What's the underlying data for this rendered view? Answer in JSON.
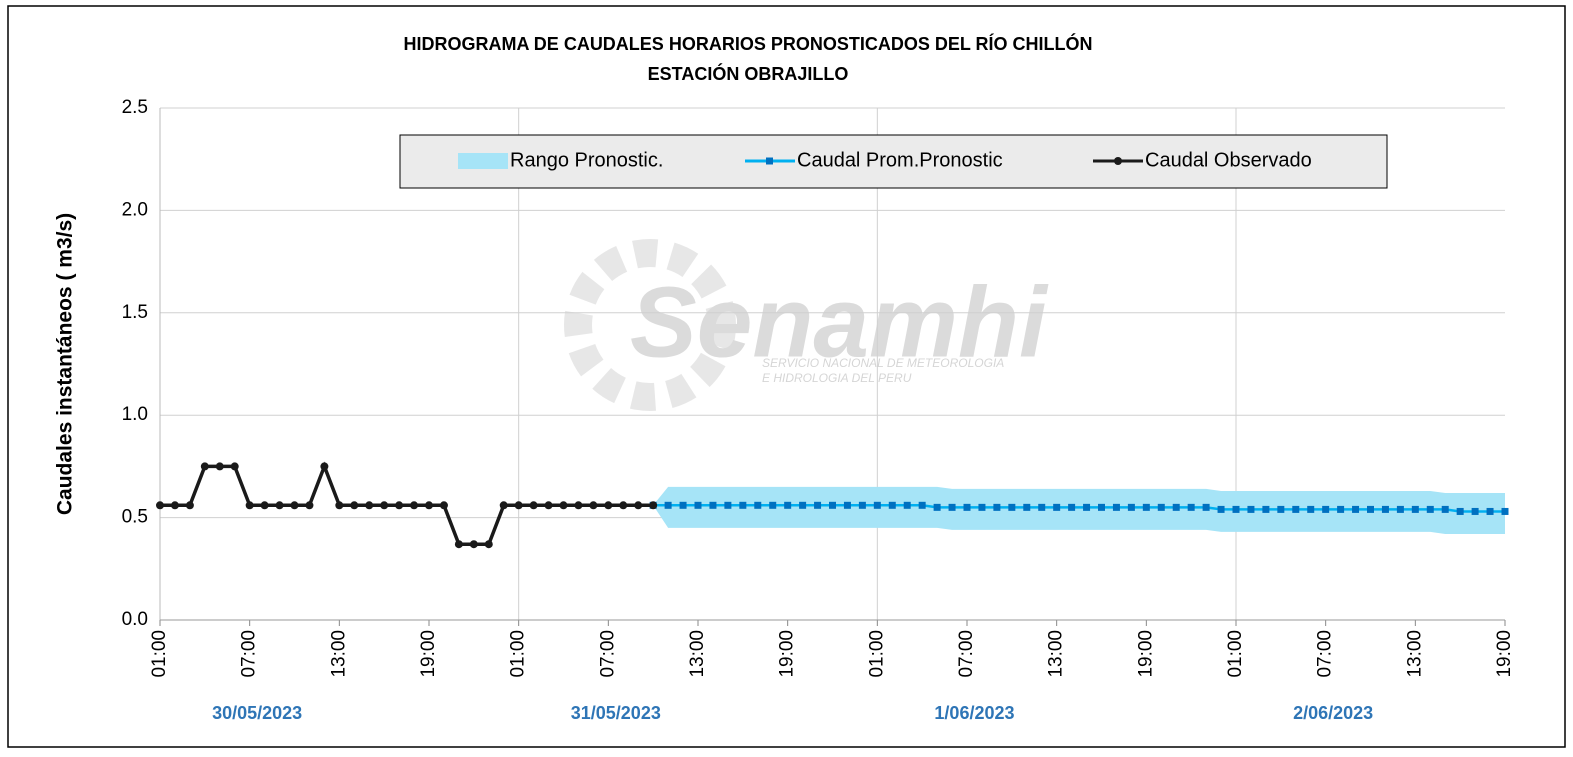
{
  "chart_data": {
    "type": "line",
    "title": "HIDROGRAMA DE CAUDALES HORARIOS PRONOSTICADOS DEL RÍO CHILLÓN",
    "subtitle": "ESTACIÓN OBRAJILLO",
    "ylabel": "Caudales instantáneos  ( m3/s)",
    "watermark": {
      "name": "Senamhi",
      "line1": "SERVICIO NACIONAL DE METEOROLOGIA",
      "line2": "E HIDROLOGIA DEL PERU"
    },
    "categories": [
      "01:00",
      null,
      null,
      null,
      null,
      null,
      "07:00",
      null,
      null,
      null,
      null,
      null,
      "13:00",
      null,
      null,
      null,
      null,
      null,
      "19:00",
      null,
      null,
      null,
      null,
      null,
      "01:00",
      null,
      null,
      null,
      null,
      null,
      "07:00",
      null,
      null,
      null,
      null,
      null,
      "13:00",
      null,
      null,
      null,
      null,
      null,
      "19:00",
      null,
      null,
      null,
      null,
      null,
      "01:00",
      null,
      null,
      null,
      null,
      null,
      "07:00",
      null,
      null,
      null,
      null,
      null,
      "13:00",
      null,
      null,
      null,
      null,
      null,
      "19:00",
      null,
      null,
      null,
      null,
      null,
      "01:00",
      null,
      null,
      null,
      null,
      null,
      "07:00",
      null,
      null,
      null,
      null,
      null,
      "13:00",
      null,
      null,
      null,
      null,
      null,
      "19:00"
    ],
    "dates": [
      "30/05/2023",
      "31/05/2023",
      "1/06/2023",
      "2/06/2023"
    ],
    "ylim": [
      0,
      2.5
    ],
    "yticks": [
      {
        "value": 0,
        "label": "0.0"
      },
      0.5,
      {
        "value": 1,
        "label": "1.0"
      },
      1.5,
      {
        "value": 2,
        "label": "2.0"
      },
      2.5
    ],
    "grid": true,
    "legend": "top",
    "series": [
      {
        "name": "Rango Pronostic.",
        "color": "#a6e4f7",
        "low": [
          null,
          null,
          null,
          null,
          null,
          null,
          null,
          null,
          null,
          null,
          null,
          null,
          null,
          null,
          null,
          null,
          null,
          null,
          null,
          null,
          null,
          null,
          null,
          null,
          null,
          null,
          null,
          null,
          null,
          null,
          null,
          null,
          null,
          0.56,
          0.45,
          0.45,
          0.45,
          0.45,
          0.45,
          0.45,
          0.45,
          0.45,
          0.45,
          0.45,
          0.45,
          0.45,
          0.45,
          0.45,
          0.45,
          0.45,
          0.45,
          0.45,
          0.45,
          0.44,
          0.44,
          0.44,
          0.44,
          0.44,
          0.44,
          0.44,
          0.44,
          0.44,
          0.44,
          0.44,
          0.44,
          0.44,
          0.44,
          0.44,
          0.44,
          0.44,
          0.44,
          0.43,
          0.43,
          0.43,
          0.43,
          0.43,
          0.43,
          0.43,
          0.43,
          0.43,
          0.43,
          0.43,
          0.43,
          0.43,
          0.43,
          0.43,
          0.42,
          0.42,
          0.42,
          0.42,
          0.42
        ],
        "high": [
          null,
          null,
          null,
          null,
          null,
          null,
          null,
          null,
          null,
          null,
          null,
          null,
          null,
          null,
          null,
          null,
          null,
          null,
          null,
          null,
          null,
          null,
          null,
          null,
          null,
          null,
          null,
          null,
          null,
          null,
          null,
          null,
          null,
          0.56,
          0.65,
          0.65,
          0.65,
          0.65,
          0.65,
          0.65,
          0.65,
          0.65,
          0.65,
          0.65,
          0.65,
          0.65,
          0.65,
          0.65,
          0.65,
          0.65,
          0.65,
          0.65,
          0.65,
          0.64,
          0.64,
          0.64,
          0.64,
          0.64,
          0.64,
          0.64,
          0.64,
          0.64,
          0.64,
          0.64,
          0.64,
          0.64,
          0.64,
          0.64,
          0.64,
          0.64,
          0.64,
          0.63,
          0.63,
          0.63,
          0.63,
          0.63,
          0.63,
          0.63,
          0.63,
          0.63,
          0.63,
          0.63,
          0.63,
          0.63,
          0.63,
          0.63,
          0.62,
          0.62,
          0.62,
          0.62,
          0.62
        ]
      },
      {
        "name": "Caudal Prom.Pronostic",
        "color": "#0070c0",
        "line_color": "#00b0f0",
        "values": [
          null,
          null,
          null,
          null,
          null,
          null,
          null,
          null,
          null,
          null,
          null,
          null,
          null,
          null,
          null,
          null,
          null,
          null,
          null,
          null,
          null,
          null,
          null,
          null,
          null,
          null,
          null,
          null,
          null,
          null,
          null,
          null,
          null,
          0.56,
          0.56,
          0.56,
          0.56,
          0.56,
          0.56,
          0.56,
          0.56,
          0.56,
          0.56,
          0.56,
          0.56,
          0.56,
          0.56,
          0.56,
          0.56,
          0.56,
          0.56,
          0.56,
          0.55,
          0.55,
          0.55,
          0.55,
          0.55,
          0.55,
          0.55,
          0.55,
          0.55,
          0.55,
          0.55,
          0.55,
          0.55,
          0.55,
          0.55,
          0.55,
          0.55,
          0.55,
          0.55,
          0.54,
          0.54,
          0.54,
          0.54,
          0.54,
          0.54,
          0.54,
          0.54,
          0.54,
          0.54,
          0.54,
          0.54,
          0.54,
          0.54,
          0.54,
          0.54,
          0.53,
          0.53,
          0.53,
          0.53
        ]
      },
      {
        "name": "Caudal Observado",
        "color": "#1a1a1a",
        "values": [
          0.56,
          0.56,
          0.56,
          0.75,
          0.75,
          0.75,
          0.56,
          0.56,
          0.56,
          0.56,
          0.56,
          0.75,
          0.56,
          0.56,
          0.56,
          0.56,
          0.56,
          0.56,
          0.56,
          0.56,
          0.37,
          0.37,
          0.37,
          0.56,
          0.56,
          0.56,
          0.56,
          0.56,
          0.56,
          0.56,
          0.56,
          0.56,
          0.56,
          0.56,
          null,
          null,
          null,
          null,
          null,
          null,
          null,
          null,
          null,
          null,
          null,
          null,
          null,
          null,
          null,
          null,
          null,
          null,
          null,
          null,
          null,
          null,
          null,
          null,
          null,
          null,
          null,
          null,
          null,
          null,
          null,
          null,
          null,
          null,
          null,
          null,
          null,
          null,
          null,
          null,
          null,
          null,
          null,
          null,
          null,
          null,
          null,
          null,
          null,
          null,
          null,
          null,
          null,
          null,
          null,
          null,
          null
        ]
      }
    ]
  }
}
